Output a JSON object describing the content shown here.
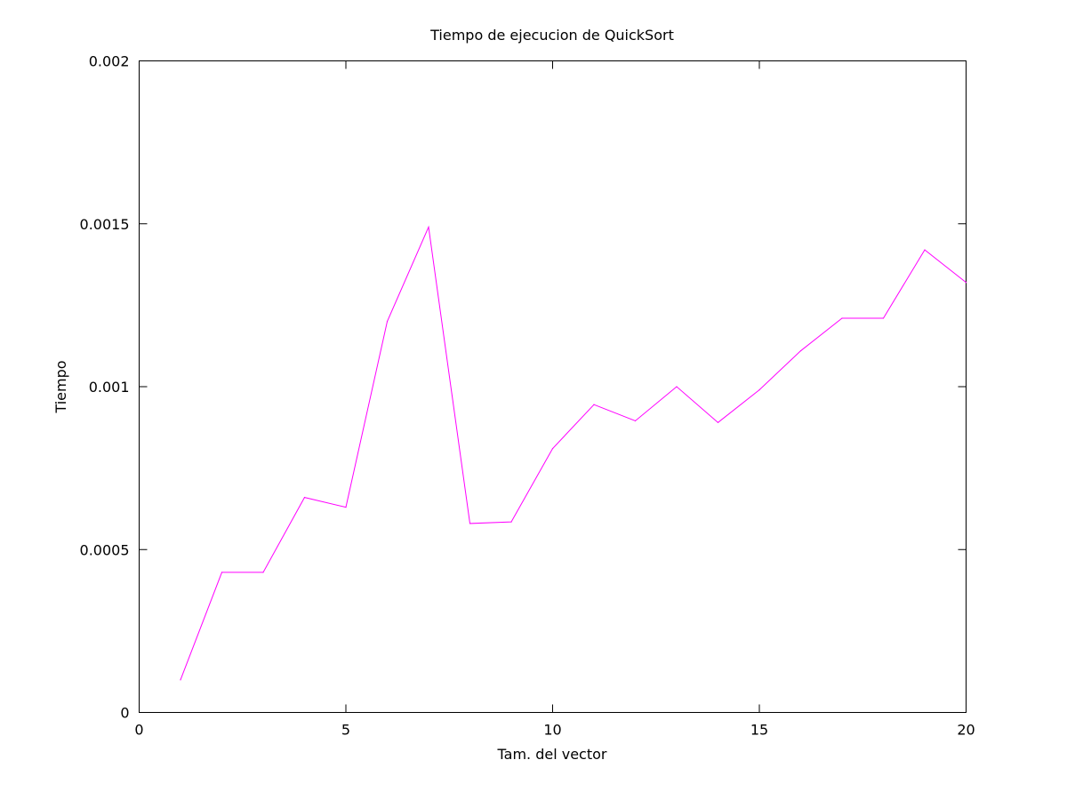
{
  "chart_data": {
    "type": "line",
    "title": "Tiempo de ejecucion de QuickSort",
    "xlabel": "Tam. del vector",
    "ylabel": "Tiempo",
    "xlim": [
      0,
      20
    ],
    "ylim": [
      0,
      0.002
    ],
    "x_ticks": [
      0,
      5,
      10,
      15,
      20
    ],
    "x_tick_labels": [
      "0",
      "5",
      "10",
      "15",
      "20"
    ],
    "y_ticks": [
      0,
      0.0005,
      0.001,
      0.0015,
      0.002
    ],
    "y_tick_labels": [
      "0",
      "0.0005",
      "0.001",
      "0.0015",
      "0.002"
    ],
    "grid": false,
    "legend": "none",
    "series": [
      {
        "color": "#ff00ff",
        "x": [
          1,
          2,
          3,
          4,
          5,
          6,
          7,
          8,
          9,
          10,
          11,
          12,
          13,
          14,
          15,
          16,
          17,
          18,
          19,
          20
        ],
        "y": [
          0.0001,
          0.00043,
          0.00043,
          0.00066,
          0.00063,
          0.0012,
          0.00149,
          0.00058,
          0.000585,
          0.00081,
          0.000945,
          0.000895,
          0.001,
          0.00089,
          0.00099,
          0.00111,
          0.00121,
          0.00121,
          0.00142,
          0.00132
        ]
      }
    ]
  }
}
